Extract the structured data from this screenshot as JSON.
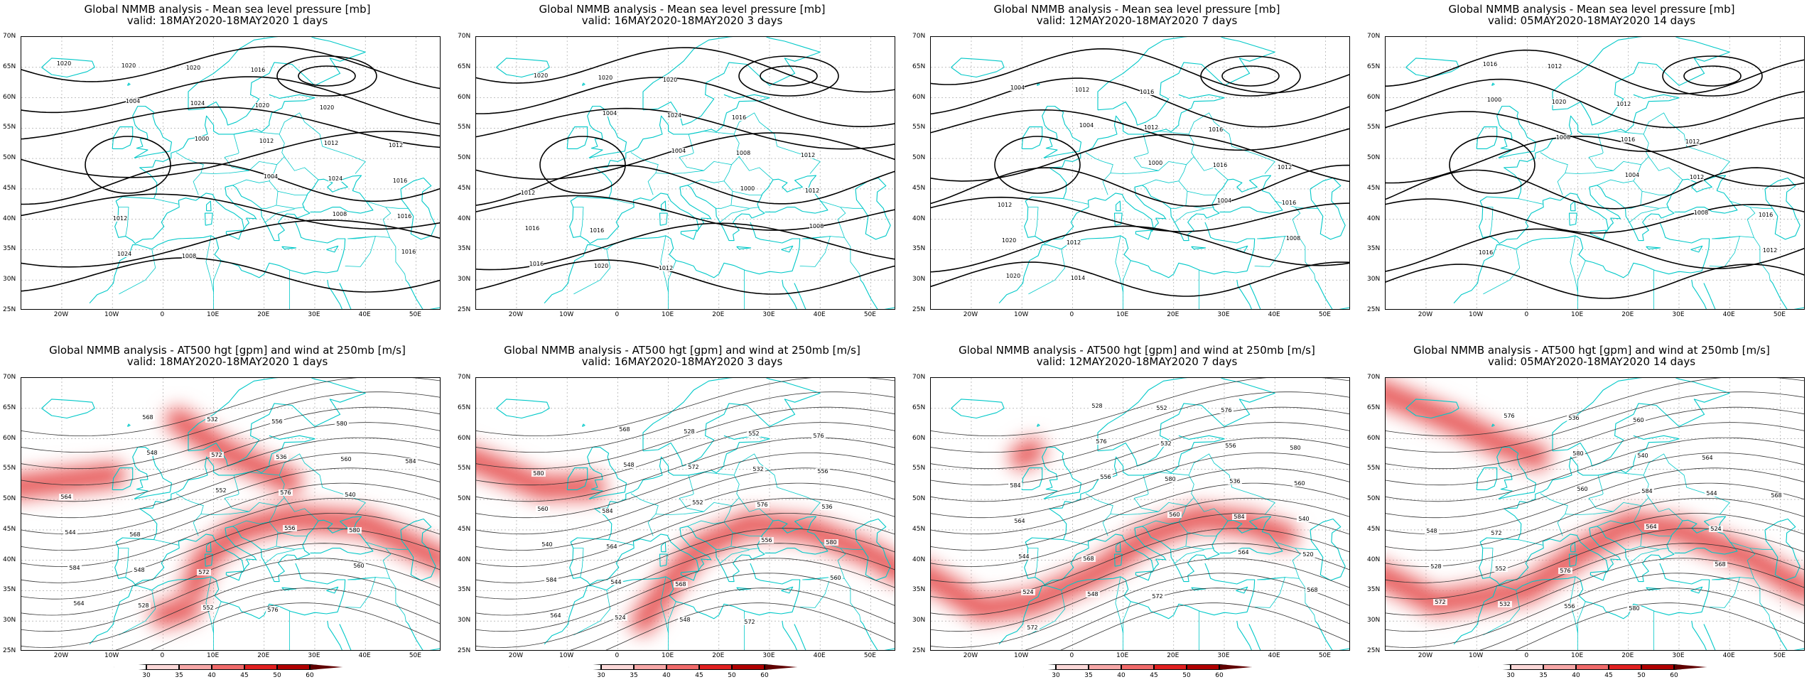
{
  "panels": [
    {
      "title1": "Global NMMB analysis - Mean sea level pressure [mb]",
      "title2": "valid: 18MAY2020-18MAY2020   1 days",
      "type": "mslp",
      "ncont": 0,
      "labels": [
        "1020",
        "1004",
        "1000",
        "1004",
        "1008",
        "1016",
        "1020",
        "1024",
        "1012",
        "1024",
        "1016",
        "1024",
        "1020",
        "1020",
        "1012",
        "1016",
        "1012",
        "1008",
        "1016",
        "1020",
        "1012"
      ]
    },
    {
      "title1": "Global NMMB analysis - Mean sea level pressure [mb]",
      "title2": "valid: 16MAY2020-18MAY2020   3 days",
      "type": "mslp",
      "ncont": 0,
      "labels": [
        "1020",
        "1004",
        "1004",
        "1000",
        "1008",
        "1016",
        "1020",
        "1024",
        "1008",
        "1012",
        "1016",
        "1020",
        "1020",
        "1016",
        "1012",
        "1012",
        "1016",
        "1012"
      ]
    },
    {
      "title1": "Global NMMB analysis - Mean sea level pressure [mb]",
      "title2": "valid: 12MAY2020-18MAY2020   7 days",
      "type": "mslp",
      "ncont": 0,
      "labels": [
        "1004",
        "1004",
        "1000",
        "1004",
        "1008",
        "1020",
        "1012",
        "1012",
        "1016",
        "1016",
        "1020",
        "1014",
        "1016",
        "1016",
        "1012",
        "1012",
        "1012"
      ]
    },
    {
      "title1": "Global NMMB analysis - Mean sea level pressure [mb]",
      "title2": "valid: 05MAY2020-18MAY2020   14 days",
      "type": "mslp",
      "ncont": 0,
      "labels": [
        "1000",
        "1008",
        "1004",
        "1008",
        "1012",
        "1016",
        "1020",
        "1016",
        "1012",
        "1016",
        "1016",
        "1012",
        "1012",
        "1012"
      ]
    },
    {
      "title1": "Global NMMB analysis - AT500 hgt [gpm] and wind at 250mb [m/s]",
      "title2": "valid: 18MAY2020-18MAY2020   1 days",
      "type": "z500",
      "labels": [
        "548",
        "552",
        "556",
        "560",
        "564",
        "568",
        "572",
        "576",
        "580",
        "584",
        "528",
        "532",
        "536",
        "540",
        "544",
        "548",
        "552",
        "556",
        "560",
        "564",
        "568",
        "572",
        "576",
        "580",
        "584"
      ]
    },
    {
      "title1": "Global NMMB analysis - AT500 hgt [gpm] and wind at 250mb [m/s]",
      "title2": "valid: 16MAY2020-18MAY2020   3 days",
      "type": "z500",
      "labels": [
        "548",
        "552",
        "556",
        "560",
        "564",
        "568",
        "572",
        "576",
        "580",
        "584",
        "524",
        "528",
        "532",
        "536",
        "540",
        "544",
        "548",
        "552",
        "556",
        "560",
        "564",
        "568",
        "572",
        "576",
        "580",
        "584"
      ]
    },
    {
      "title1": "Global NMMB analysis - AT500 hgt [gpm] and wind at 250mb [m/s]",
      "title2": "valid: 12MAY2020-18MAY2020   7 days",
      "type": "z500",
      "labels": [
        "556",
        "560",
        "564",
        "568",
        "572",
        "576",
        "580",
        "584",
        "520",
        "524",
        "528",
        "532",
        "536",
        "540",
        "544",
        "548",
        "552",
        "556",
        "560",
        "564",
        "568",
        "572",
        "576",
        "580",
        "584"
      ]
    },
    {
      "title1": "Global NMMB analysis - AT500 hgt [gpm] and wind at 250mb [m/s]",
      "title2": "valid: 05MAY2020-18MAY2020   14 days",
      "type": "z500",
      "labels": [
        "560",
        "564",
        "568",
        "572",
        "576",
        "580",
        "584",
        "524",
        "528",
        "532",
        "536",
        "540",
        "544",
        "548",
        "552",
        "556",
        "560",
        "564",
        "568",
        "572",
        "576",
        "580"
      ]
    }
  ],
  "lat_labels": [
    "70N",
    "65N",
    "60N",
    "55N",
    "50N",
    "45N",
    "40N",
    "35N",
    "30N",
    "25N"
  ],
  "lon_labels": [
    "20W",
    "10W",
    "0",
    "10E",
    "20E",
    "30E",
    "40E",
    "50E"
  ],
  "colorbar": {
    "ticks": [
      "30",
      "35",
      "40",
      "45",
      "50",
      "60"
    ],
    "colors": [
      "#ffffff",
      "#fbd8d8",
      "#f7a8a8",
      "#f06a6a",
      "#e02020",
      "#b00000",
      "#600000"
    ]
  },
  "colors": {
    "coast": "#00c8c8",
    "contour": "#000000",
    "grid": "#9a9a9a",
    "jet": "#dd0000"
  }
}
